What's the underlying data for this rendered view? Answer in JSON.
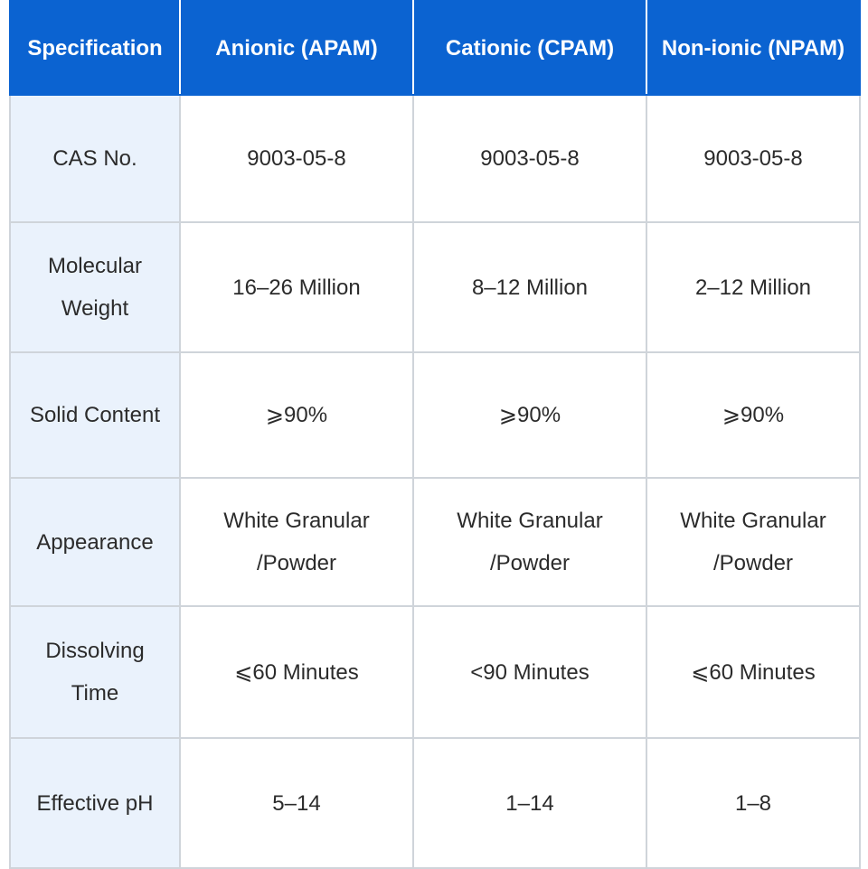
{
  "table": {
    "headers": [
      "Specification",
      "Anionic (APAM)",
      "Cationic (CPAM)",
      "Non-ionic (NPAM)"
    ],
    "rows": [
      {
        "label": [
          "CAS No."
        ],
        "cells": [
          [
            "9003-05-8"
          ],
          [
            "9003-05-8"
          ],
          [
            "9003-05-8"
          ]
        ]
      },
      {
        "label": [
          "Molecular",
          "Weight"
        ],
        "cells": [
          [
            "16–26 Million"
          ],
          [
            "8–12 Million"
          ],
          [
            "2–12 Million"
          ]
        ]
      },
      {
        "label": [
          "Solid Content"
        ],
        "cells": [
          [
            "⩾90%"
          ],
          [
            "⩾90%"
          ],
          [
            "⩾90%"
          ]
        ]
      },
      {
        "label": [
          "Appearance"
        ],
        "cells": [
          [
            "White Granular",
            "/Powder"
          ],
          [
            "White Granular",
            "/Powder"
          ],
          [
            "White Granular",
            "/Powder"
          ]
        ]
      },
      {
        "label": [
          "Dissolving",
          "Time"
        ],
        "cells": [
          [
            "⩽60 Minutes"
          ],
          [
            "<90 Minutes"
          ],
          [
            "⩽60 Minutes"
          ]
        ]
      },
      {
        "label": [
          "Effective pH"
        ],
        "cells": [
          [
            "5–14"
          ],
          [
            "1–14"
          ],
          [
            "1–8"
          ]
        ]
      }
    ]
  },
  "colors": {
    "header_bg": "#0b63d1",
    "header_text": "#ffffff",
    "label_bg": "#eaf2fc",
    "border": "#cfd4da"
  }
}
